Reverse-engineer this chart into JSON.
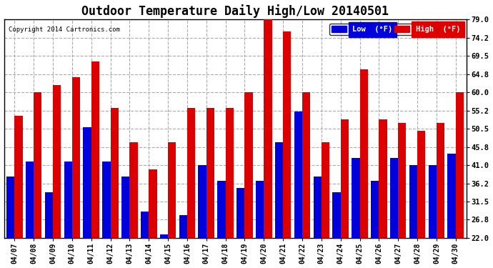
{
  "title": "Outdoor Temperature Daily High/Low 20140501",
  "copyright": "Copyright 2014 Cartronics.com",
  "legend_low": "Low  (°F)",
  "legend_high": "High  (°F)",
  "dates": [
    "04/07",
    "04/08",
    "04/09",
    "04/10",
    "04/11",
    "04/12",
    "04/13",
    "04/14",
    "04/15",
    "04/16",
    "04/17",
    "04/18",
    "04/19",
    "04/20",
    "04/21",
    "04/22",
    "04/23",
    "04/24",
    "04/25",
    "04/26",
    "04/27",
    "04/28",
    "04/29",
    "04/30"
  ],
  "low": [
    38,
    42,
    34,
    42,
    51,
    42,
    38,
    29,
    23,
    28,
    41,
    37,
    35,
    37,
    47,
    55,
    38,
    34,
    43,
    37,
    43,
    41,
    41,
    44
  ],
  "high": [
    54,
    60,
    62,
    64,
    68,
    56,
    47,
    40,
    47,
    56,
    56,
    56,
    60,
    80,
    76,
    60,
    47,
    53,
    66,
    53,
    52,
    50,
    52,
    60
  ],
  "ylim_min": 22.0,
  "ylim_max": 79.0,
  "yticks": [
    22.0,
    26.8,
    31.5,
    36.2,
    41.0,
    45.8,
    50.5,
    55.2,
    60.0,
    64.8,
    69.5,
    74.2,
    79.0
  ],
  "ytick_labels": [
    "22.0",
    "26.8",
    "31.5",
    "36.2",
    "41.0",
    "45.8",
    "50.5",
    "55.2",
    "60.0",
    "64.8",
    "69.5",
    "74.2",
    "79.0"
  ],
  "low_color": "#0000dd",
  "high_color": "#dd0000",
  "background_color": "#ffffff",
  "grid_color": "#aaaaaa",
  "title_fontsize": 12,
  "bar_width": 0.42,
  "border_color": "#000000"
}
